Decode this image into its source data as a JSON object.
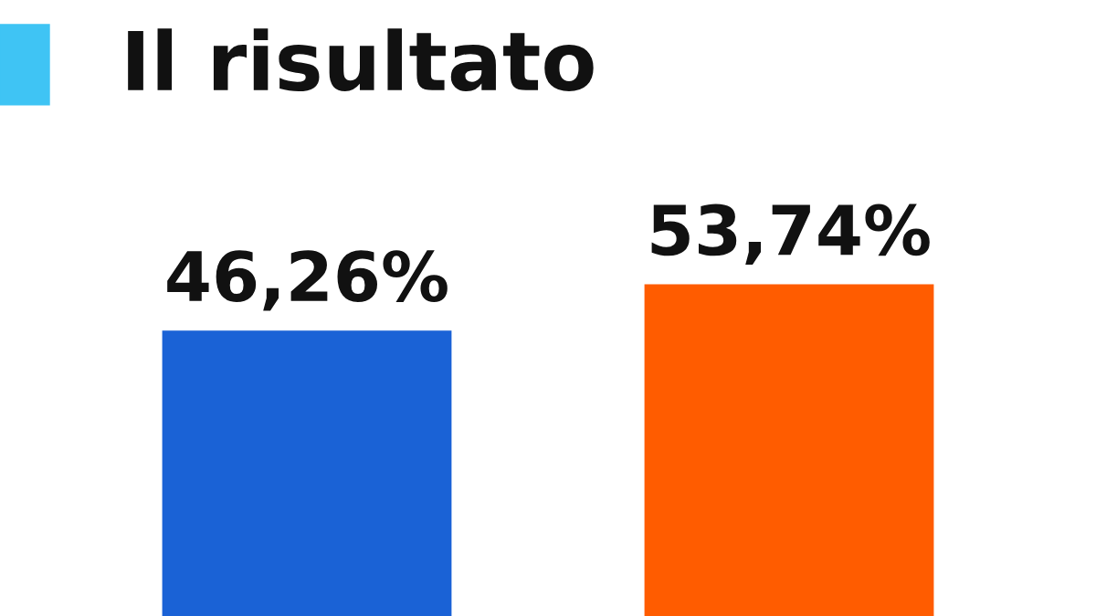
{
  "chart_data": {
    "type": "bar",
    "title": "Il risultato",
    "categories": [
      null,
      null
    ],
    "values": [
      46.26,
      53.74
    ],
    "colors": [
      "#1a62d6",
      "#ff5c00"
    ],
    "value_labels": [
      "46,26%",
      "53,74%"
    ],
    "grid": false,
    "legend": false,
    "tick_labels": false
  }
}
